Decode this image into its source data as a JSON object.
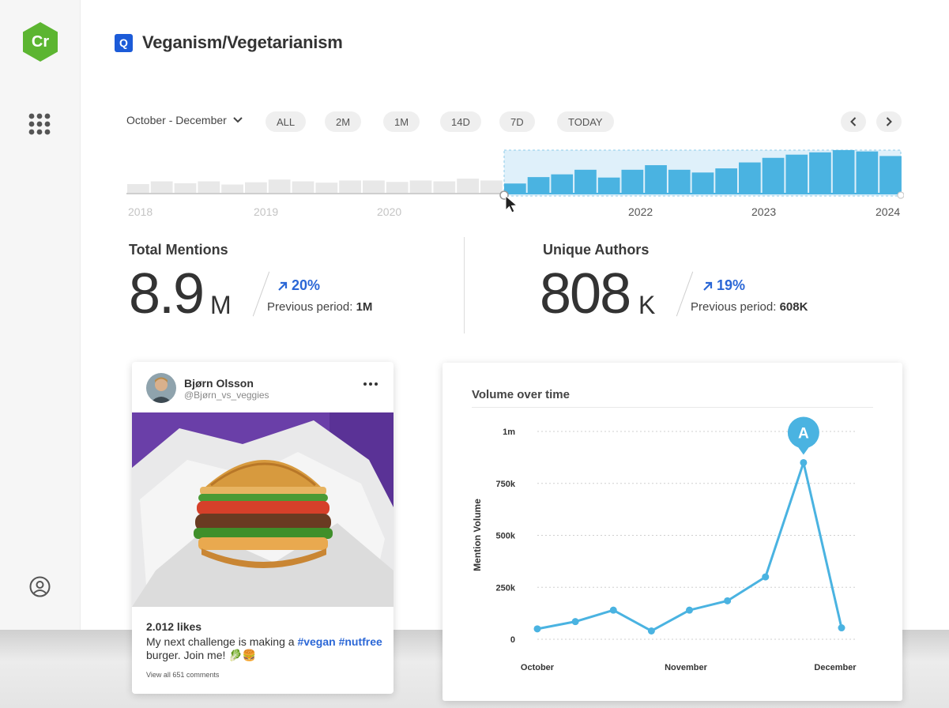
{
  "sidebar": {
    "logo_text": "Cr",
    "logo_color": "#5cb531",
    "apps_icon": "grid-icon",
    "user_icon": "user-circle-icon"
  },
  "header": {
    "badge": "Q",
    "title": "Veganism/Vegetarianism"
  },
  "range": {
    "selected": "October - December",
    "pills": [
      "ALL",
      "2M",
      "1M",
      "14D",
      "7D",
      "TODAY"
    ]
  },
  "timeline": {
    "years": [
      "2018",
      "2019",
      "2020",
      "2022",
      "2023",
      "2024"
    ],
    "inactive_levels": [
      0.3,
      0.45,
      0.35,
      0.45,
      0.28,
      0.4,
      0.55,
      0.45,
      0.38,
      0.5,
      0.5,
      0.42,
      0.5,
      0.45,
      0.6,
      0.5
    ],
    "active_levels": [
      0.22,
      0.36,
      0.42,
      0.52,
      0.35,
      0.52,
      0.62,
      0.52,
      0.46,
      0.55,
      0.68,
      0.78,
      0.85,
      0.9,
      0.95,
      0.92,
      0.82
    ],
    "accent": "#4ab3e1"
  },
  "stats": {
    "total_mentions": {
      "label": "Total Mentions",
      "value": "8.9",
      "unit": "M",
      "change": "20%",
      "prev_label": "Previous period:",
      "prev_value": "1M"
    },
    "unique_authors": {
      "label": "Unique Authors",
      "value": "808",
      "unit": "K",
      "change": "19%",
      "prev_label": "Previous period:",
      "prev_value": "608K"
    }
  },
  "post": {
    "author": "Bjørn Olsson",
    "handle": "@Bjørn_vs_veggies",
    "likes": "2.012 likes",
    "text_before": "My next challenge is making a",
    "tags": "#vegan #nutfree",
    "text_after": "burger. Join me! 🥬🍔",
    "comments": "View all 651 comments"
  },
  "chart_data": {
    "type": "line",
    "title": "Volume over time",
    "ylabel": "Mention Volume",
    "y_ticks": [
      "0",
      "250k",
      "500k",
      "750k",
      "1m"
    ],
    "x_labels": [
      "October",
      "November",
      "December"
    ],
    "ylim": [
      0,
      1000000
    ],
    "series": [
      {
        "values": [
          50000,
          85000,
          140000,
          40000,
          140000,
          185000,
          300000,
          850000,
          55000
        ]
      }
    ],
    "annotation": "A",
    "annotation_index": 7,
    "color": "#4ab3e1"
  }
}
